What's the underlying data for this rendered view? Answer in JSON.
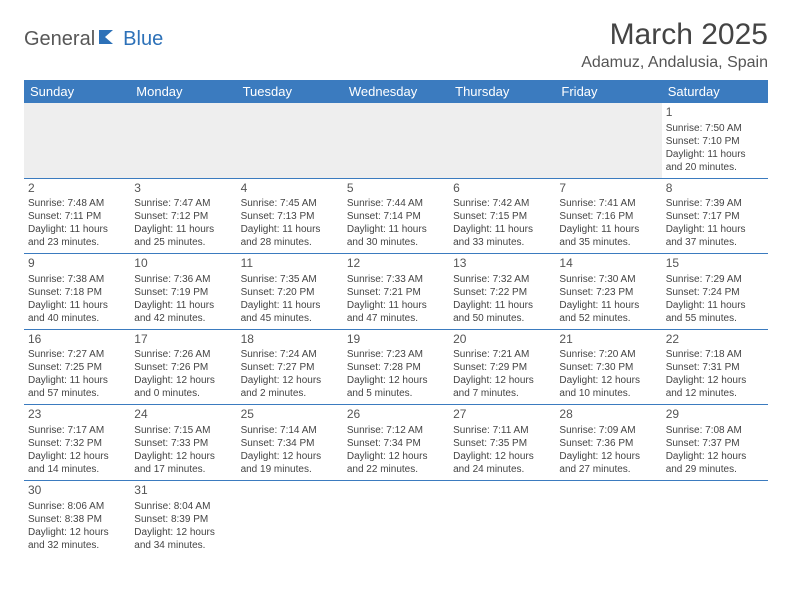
{
  "colors": {
    "header_bg": "#3b7bbf",
    "header_fg": "#ffffff",
    "border": "#3b7bbf",
    "text": "#444444",
    "logo_gray": "#575757",
    "logo_blue": "#2d71b8",
    "empty_bg": "#eeeeee"
  },
  "logo": {
    "part1": "General",
    "part2": "Blue"
  },
  "title": "March 2025",
  "location": "Adamuz, Andalusia, Spain",
  "weekdays": [
    "Sunday",
    "Monday",
    "Tuesday",
    "Wednesday",
    "Thursday",
    "Friday",
    "Saturday"
  ],
  "weeks": [
    [
      null,
      null,
      null,
      null,
      null,
      null,
      {
        "d": "1",
        "sr": "Sunrise: 7:50 AM",
        "ss": "Sunset: 7:10 PM",
        "dl1": "Daylight: 11 hours",
        "dl2": "and 20 minutes."
      }
    ],
    [
      {
        "d": "2",
        "sr": "Sunrise: 7:48 AM",
        "ss": "Sunset: 7:11 PM",
        "dl1": "Daylight: 11 hours",
        "dl2": "and 23 minutes."
      },
      {
        "d": "3",
        "sr": "Sunrise: 7:47 AM",
        "ss": "Sunset: 7:12 PM",
        "dl1": "Daylight: 11 hours",
        "dl2": "and 25 minutes."
      },
      {
        "d": "4",
        "sr": "Sunrise: 7:45 AM",
        "ss": "Sunset: 7:13 PM",
        "dl1": "Daylight: 11 hours",
        "dl2": "and 28 minutes."
      },
      {
        "d": "5",
        "sr": "Sunrise: 7:44 AM",
        "ss": "Sunset: 7:14 PM",
        "dl1": "Daylight: 11 hours",
        "dl2": "and 30 minutes."
      },
      {
        "d": "6",
        "sr": "Sunrise: 7:42 AM",
        "ss": "Sunset: 7:15 PM",
        "dl1": "Daylight: 11 hours",
        "dl2": "and 33 minutes."
      },
      {
        "d": "7",
        "sr": "Sunrise: 7:41 AM",
        "ss": "Sunset: 7:16 PM",
        "dl1": "Daylight: 11 hours",
        "dl2": "and 35 minutes."
      },
      {
        "d": "8",
        "sr": "Sunrise: 7:39 AM",
        "ss": "Sunset: 7:17 PM",
        "dl1": "Daylight: 11 hours",
        "dl2": "and 37 minutes."
      }
    ],
    [
      {
        "d": "9",
        "sr": "Sunrise: 7:38 AM",
        "ss": "Sunset: 7:18 PM",
        "dl1": "Daylight: 11 hours",
        "dl2": "and 40 minutes."
      },
      {
        "d": "10",
        "sr": "Sunrise: 7:36 AM",
        "ss": "Sunset: 7:19 PM",
        "dl1": "Daylight: 11 hours",
        "dl2": "and 42 minutes."
      },
      {
        "d": "11",
        "sr": "Sunrise: 7:35 AM",
        "ss": "Sunset: 7:20 PM",
        "dl1": "Daylight: 11 hours",
        "dl2": "and 45 minutes."
      },
      {
        "d": "12",
        "sr": "Sunrise: 7:33 AM",
        "ss": "Sunset: 7:21 PM",
        "dl1": "Daylight: 11 hours",
        "dl2": "and 47 minutes."
      },
      {
        "d": "13",
        "sr": "Sunrise: 7:32 AM",
        "ss": "Sunset: 7:22 PM",
        "dl1": "Daylight: 11 hours",
        "dl2": "and 50 minutes."
      },
      {
        "d": "14",
        "sr": "Sunrise: 7:30 AM",
        "ss": "Sunset: 7:23 PM",
        "dl1": "Daylight: 11 hours",
        "dl2": "and 52 minutes."
      },
      {
        "d": "15",
        "sr": "Sunrise: 7:29 AM",
        "ss": "Sunset: 7:24 PM",
        "dl1": "Daylight: 11 hours",
        "dl2": "and 55 minutes."
      }
    ],
    [
      {
        "d": "16",
        "sr": "Sunrise: 7:27 AM",
        "ss": "Sunset: 7:25 PM",
        "dl1": "Daylight: 11 hours",
        "dl2": "and 57 minutes."
      },
      {
        "d": "17",
        "sr": "Sunrise: 7:26 AM",
        "ss": "Sunset: 7:26 PM",
        "dl1": "Daylight: 12 hours",
        "dl2": "and 0 minutes."
      },
      {
        "d": "18",
        "sr": "Sunrise: 7:24 AM",
        "ss": "Sunset: 7:27 PM",
        "dl1": "Daylight: 12 hours",
        "dl2": "and 2 minutes."
      },
      {
        "d": "19",
        "sr": "Sunrise: 7:23 AM",
        "ss": "Sunset: 7:28 PM",
        "dl1": "Daylight: 12 hours",
        "dl2": "and 5 minutes."
      },
      {
        "d": "20",
        "sr": "Sunrise: 7:21 AM",
        "ss": "Sunset: 7:29 PM",
        "dl1": "Daylight: 12 hours",
        "dl2": "and 7 minutes."
      },
      {
        "d": "21",
        "sr": "Sunrise: 7:20 AM",
        "ss": "Sunset: 7:30 PM",
        "dl1": "Daylight: 12 hours",
        "dl2": "and 10 minutes."
      },
      {
        "d": "22",
        "sr": "Sunrise: 7:18 AM",
        "ss": "Sunset: 7:31 PM",
        "dl1": "Daylight: 12 hours",
        "dl2": "and 12 minutes."
      }
    ],
    [
      {
        "d": "23",
        "sr": "Sunrise: 7:17 AM",
        "ss": "Sunset: 7:32 PM",
        "dl1": "Daylight: 12 hours",
        "dl2": "and 14 minutes."
      },
      {
        "d": "24",
        "sr": "Sunrise: 7:15 AM",
        "ss": "Sunset: 7:33 PM",
        "dl1": "Daylight: 12 hours",
        "dl2": "and 17 minutes."
      },
      {
        "d": "25",
        "sr": "Sunrise: 7:14 AM",
        "ss": "Sunset: 7:34 PM",
        "dl1": "Daylight: 12 hours",
        "dl2": "and 19 minutes."
      },
      {
        "d": "26",
        "sr": "Sunrise: 7:12 AM",
        "ss": "Sunset: 7:34 PM",
        "dl1": "Daylight: 12 hours",
        "dl2": "and 22 minutes."
      },
      {
        "d": "27",
        "sr": "Sunrise: 7:11 AM",
        "ss": "Sunset: 7:35 PM",
        "dl1": "Daylight: 12 hours",
        "dl2": "and 24 minutes."
      },
      {
        "d": "28",
        "sr": "Sunrise: 7:09 AM",
        "ss": "Sunset: 7:36 PM",
        "dl1": "Daylight: 12 hours",
        "dl2": "and 27 minutes."
      },
      {
        "d": "29",
        "sr": "Sunrise: 7:08 AM",
        "ss": "Sunset: 7:37 PM",
        "dl1": "Daylight: 12 hours",
        "dl2": "and 29 minutes."
      }
    ],
    [
      {
        "d": "30",
        "sr": "Sunrise: 8:06 AM",
        "ss": "Sunset: 8:38 PM",
        "dl1": "Daylight: 12 hours",
        "dl2": "and 32 minutes."
      },
      {
        "d": "31",
        "sr": "Sunrise: 8:04 AM",
        "ss": "Sunset: 8:39 PM",
        "dl1": "Daylight: 12 hours",
        "dl2": "and 34 minutes."
      },
      null,
      null,
      null,
      null,
      null
    ]
  ]
}
